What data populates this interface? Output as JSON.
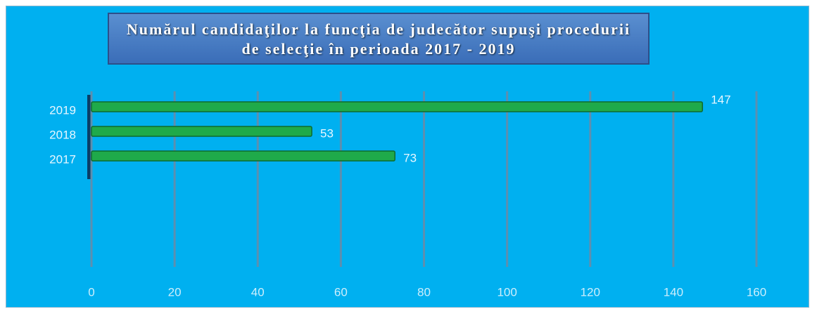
{
  "chart_data": {
    "type": "bar",
    "orientation": "horizontal",
    "title": "Numărul candidaţilor la funcţia de judecător supuşi procedurii de selecţie în perioada  2017 - 2019",
    "categories": [
      "2019",
      "2018",
      "2017"
    ],
    "values": [
      147,
      53,
      73
    ],
    "color": "#1faa4a",
    "xlim": [
      0,
      160
    ],
    "xticks": [
      0,
      20,
      40,
      60,
      80,
      100,
      120,
      140,
      160
    ],
    "grid": true
  }
}
